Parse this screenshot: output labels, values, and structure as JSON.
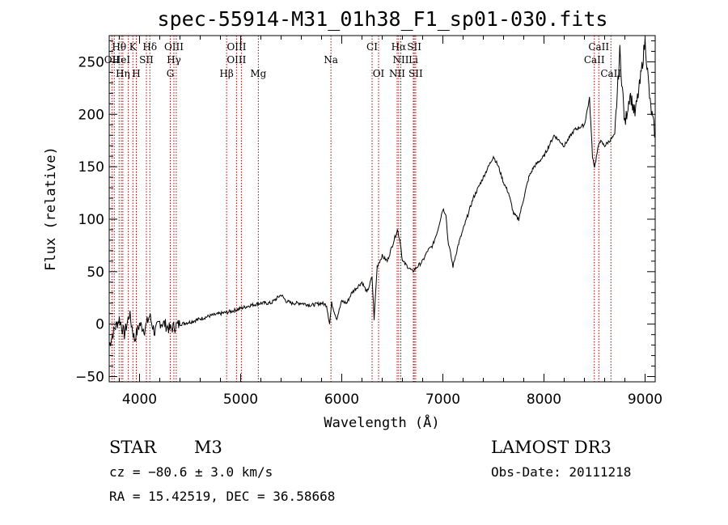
{
  "chart_data": {
    "type": "line",
    "title": "spec-55914-M31_01h38_F1_sp01-030.fits",
    "xlabel": "Wavelength (Å)",
    "ylabel": "Flux (relative)",
    "xlim": [
      3700,
      9100
    ],
    "ylim": [
      -55,
      275
    ],
    "xticks": [
      4000,
      5000,
      6000,
      7000,
      8000,
      9000
    ],
    "yticks": [
      -50,
      0,
      50,
      100,
      150,
      200,
      250
    ],
    "series": [
      {
        "name": "spectrum",
        "x": [
          3700,
          3750,
          3800,
          3850,
          3900,
          3950,
          4000,
          4050,
          4100,
          4150,
          4200,
          4250,
          4300,
          4350,
          4400,
          4500,
          4600,
          4700,
          4800,
          4900,
          5000,
          5100,
          5200,
          5300,
          5400,
          5450,
          5500,
          5600,
          5700,
          5800,
          5850,
          5880,
          5900,
          5950,
          6000,
          6050,
          6100,
          6150,
          6200,
          6250,
          6300,
          6320,
          6350,
          6400,
          6450,
          6500,
          6550,
          6580,
          6600,
          6650,
          6700,
          6750,
          6800,
          6850,
          6900,
          6950,
          7000,
          7030,
          7050,
          7100,
          7150,
          7200,
          7300,
          7400,
          7500,
          7550,
          7600,
          7650,
          7700,
          7750,
          7800,
          7850,
          7900,
          8000,
          8100,
          8200,
          8300,
          8400,
          8450,
          8480,
          8500,
          8550,
          8600,
          8650,
          8700,
          8750,
          8800,
          8850,
          8900,
          8950,
          9000,
          9050,
          9100
        ],
        "y": [
          -20,
          -5,
          5,
          -10,
          10,
          -15,
          0,
          -5,
          8,
          -8,
          2,
          0,
          -5,
          -2,
          0,
          2,
          5,
          8,
          10,
          12,
          15,
          18,
          20,
          20,
          28,
          22,
          20,
          20,
          18,
          20,
          18,
          0,
          20,
          5,
          22,
          20,
          30,
          35,
          40,
          30,
          45,
          5,
          55,
          65,
          60,
          75,
          90,
          78,
          60,
          55,
          50,
          55,
          60,
          70,
          75,
          90,
          110,
          105,
          80,
          55,
          75,
          90,
          120,
          140,
          160,
          150,
          135,
          125,
          105,
          100,
          120,
          140,
          150,
          160,
          180,
          170,
          185,
          190,
          215,
          160,
          150,
          175,
          170,
          175,
          180,
          260,
          190,
          220,
          200,
          230,
          270,
          210,
          180
        ]
      }
    ],
    "line_labels": [
      {
        "label": "Hθ",
        "x": 3798
      },
      {
        "label": "K",
        "x": 3934
      },
      {
        "label": "Hδ",
        "x": 4102
      },
      {
        "label": "OIII",
        "x": 4340
      },
      {
        "label": "OIII",
        "x": 4960
      },
      {
        "label": "CI",
        "x": 6300
      },
      {
        "label": "Hα",
        "x": 6563
      },
      {
        "label": "SII",
        "x": 6717
      },
      {
        "label": "CaII",
        "x": 8542
      },
      {
        "label": "OII",
        "x": 3727
      },
      {
        "label": "HeI",
        "x": 3820
      },
      {
        "label": "SII",
        "x": 4068
      },
      {
        "label": "Hγ",
        "x": 4340
      },
      {
        "label": "OIII",
        "x": 4959
      },
      {
        "label": "Na",
        "x": 5893
      },
      {
        "label": "NII",
        "x": 6584
      },
      {
        "label": "Li",
        "x": 6708
      },
      {
        "label": "CaII",
        "x": 8498
      },
      {
        "label": "Hη",
        "x": 3835
      },
      {
        "label": "H",
        "x": 3968
      },
      {
        "label": "G",
        "x": 4304
      },
      {
        "label": "Hβ",
        "x": 4861
      },
      {
        "label": "Mg",
        "x": 5175
      },
      {
        "label": "OI",
        "x": 6364
      },
      {
        "label": "NII",
        "x": 6548
      },
      {
        "label": "SII",
        "x": 6731
      },
      {
        "label": "CaII",
        "x": 8662
      }
    ],
    "line_positions": [
      3727,
      3750,
      3798,
      3820,
      3835,
      3889,
      3934,
      3968,
      4068,
      4102,
      4304,
      4340,
      4363,
      4861,
      4959,
      5007,
      5175,
      5893,
      6300,
      6364,
      6548,
      6563,
      6584,
      6708,
      6717,
      6731,
      8498,
      8542,
      8662
    ],
    "line_color": "#b00000",
    "spectrum_color": "#000000"
  },
  "info": {
    "class": "STAR",
    "subclass": "M3",
    "survey": "LAMOST DR3",
    "cz": "cz = −80.6 ± 3.0 km/s",
    "obsdate": "Obs-Date: 20111218",
    "radec": "RA =  15.42519, DEC =  36.58668"
  }
}
